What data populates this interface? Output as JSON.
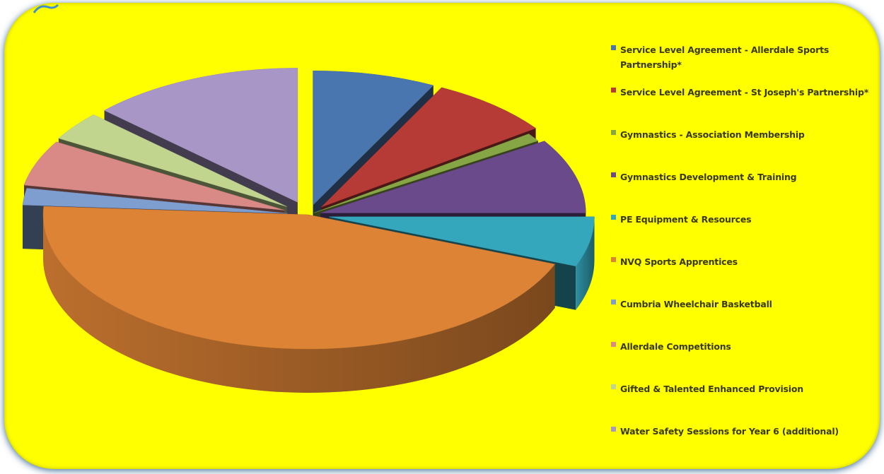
{
  "chart_data": {
    "type": "pie",
    "title": "",
    "series": [
      {
        "label": "Service Level Agreement - Allerdale Sports Partnership*",
        "value": 7.5,
        "color": "#4a76b0"
      },
      {
        "label": "Service Level Agreement - St Joseph's Partnership*",
        "value": 7.5,
        "color": "#b63a36"
      },
      {
        "label": "Gymnastics - Association Membership",
        "value": 1.0,
        "color": "#86a545"
      },
      {
        "label": "Gymnastics Development & Training",
        "value": 9.0,
        "color": "#6b4a8c"
      },
      {
        "label": "PE Equipment & Resources",
        "value": 6.0,
        "color": "#35a7bd"
      },
      {
        "label": "NVQ Sports Apprentices",
        "value": 45.0,
        "color": "#dd8335"
      },
      {
        "label": "Cumbria Wheelchair Basketball",
        "value": 2.0,
        "color": "#7f9ed0"
      },
      {
        "label": "Allerdale Competitions",
        "value": 5.5,
        "color": "#d98a87"
      },
      {
        "label": "Gifted & Talented Enhanced Provision",
        "value": 3.5,
        "color": "#c1d58f"
      },
      {
        "label": "Water Safety Sessions for Year 6 (additional)",
        "value": 13.0,
        "color": "#a896c6"
      }
    ],
    "legend_position": "right",
    "three_d": true,
    "exploded": true
  }
}
